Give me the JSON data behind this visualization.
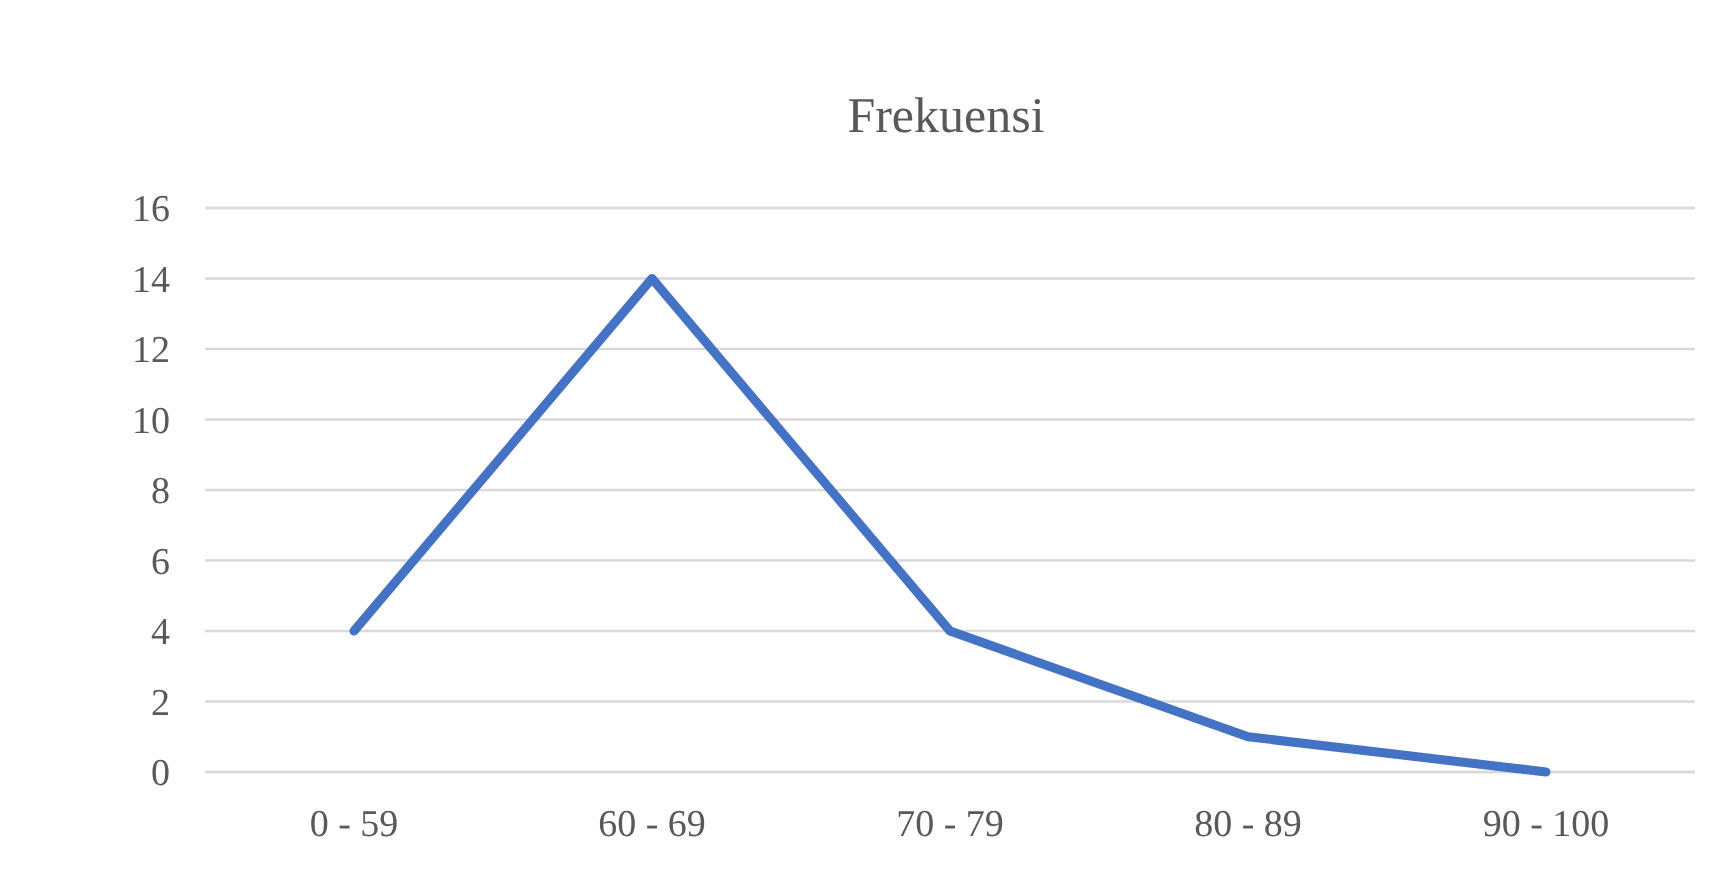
{
  "chart_data": {
    "type": "line",
    "title": "Frekuensi",
    "categories": [
      "0 - 59",
      "60 - 69",
      "70 - 79",
      "80 - 89",
      "90 - 100"
    ],
    "series": [
      {
        "color": "#4472c4",
        "values": [
          4,
          14,
          4,
          1,
          0
        ]
      }
    ],
    "ylim": [
      0,
      16
    ],
    "yticks": [
      0,
      2,
      4,
      6,
      8,
      10,
      12,
      14,
      16
    ],
    "grid": "y",
    "marker": "none",
    "line_style": "solid"
  }
}
